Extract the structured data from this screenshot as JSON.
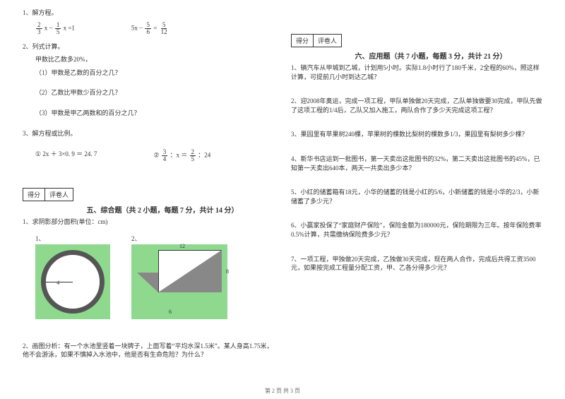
{
  "left": {
    "q1": {
      "title": "1、解方程。",
      "eq1_a": "2",
      "eq1_b": "3",
      "eq1_c": "1",
      "eq1_d": "5",
      "eq1_rhs": "x =1",
      "eq2_lhs": "5x −",
      "eq2_a": "5",
      "eq2_b": "6",
      "eq2_c": "5",
      "eq2_d": "12"
    },
    "q2": {
      "title": "2、列式计算。",
      "premise": "甲数比乙数多20%，",
      "a": "（1）甲数是乙数的百分之几？",
      "b": "（2）乙数比甲数少百分之几？",
      "c": "（3）甲数是甲乙两数和的百分之几？"
    },
    "q3": {
      "title": "3、解方程或比例。",
      "eq1": "① 2x ＋ 3×0. 9 ＝ 24. 7",
      "eq2_lead": "②",
      "eq2_a": "3",
      "eq2_b": "4",
      "eq2_mid": "：x ＝",
      "eq2_c": "2",
      "eq2_d": "5",
      "eq2_tail": "：24"
    },
    "score": {
      "left": "得分",
      "right": "评卷人"
    },
    "section5": "五、综合题（共 2 小题，每题 7 分，共计 14 分）",
    "fig": {
      "title": "1、求阴影部分面积(单位：cm)",
      "label1": "1、",
      "label2": "2、",
      "circle_r": "4",
      "dim_top": "12",
      "dim_right": "8",
      "dim_bottom": "6",
      "bg_color": "#8fd98f"
    },
    "q2b": "2、画图分析：有一个水池里竖着一块牌子，上面写着“平均水深1.5米”。某人身高1.75米，他不会游泳，如果不慎掉入水池中，他是否有生命危险？为什么？"
  },
  "right": {
    "score": {
      "left": "得分",
      "right": "评卷人"
    },
    "section6": "六、应用题（共 7 小题，每题 3 分，共计 21 分）",
    "q1": "1、辆汽车从甲城到乙城，计划用5小时。实际1.8小时行了180千米，2全程的60%，照这样计算，可提前几小时到达乙城？",
    "q2": "2、迎2008年奥运，完成一项工程，甲队单独做20天完成，乙队单独做要30完成，甲队先做了这项工程的1/4后，乙队又加入施工，两队合作了多少天完成这项工程？",
    "q3": "3、果园里有苹果树240棵，苹果树的棵数比梨树的棵数多1/3，果园里有梨树多少棵？",
    "q4": "4、新华书店运到一批图书，第一天卖出这批图书的32%，第二天卖出这批图书的45%，已知第一天卖出640本，两天一共卖出多少本？",
    "q5": "5、小红的储蓄箱有18元，小华的储蓄的钱是小红的5/6，小新储蓄的钱是小华的2/3，小新储蓄了多少元？",
    "q6": "6、小赢家投保了“家庭财产保险”，保险金额为180000元，保险期限为三年。按年保险费率0.5%计算，共需缴纳保险费多少元？",
    "q7": "7、一项工程，甲独做20天完成，乙独做30天完成，现在两人合作，完成后共得工资3500元，如果按完成工程量分配工资，甲、乙各分得多少元？"
  },
  "footer": "第 2 页 共 3 页",
  "colors": {
    "text": "#333333",
    "bg": "#ffffff",
    "figure_bg": "#8fd98f",
    "shade": "#888888"
  }
}
